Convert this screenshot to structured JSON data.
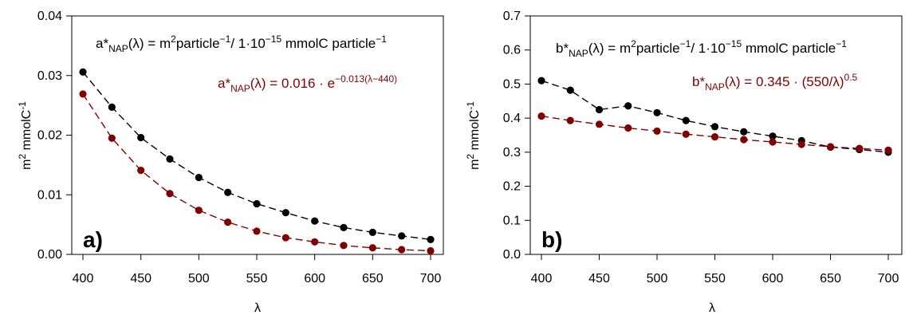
{
  "chart_data": [
    {
      "type": "line",
      "panel_label": "a)",
      "xlabel": "λ",
      "ylabel_main": "m",
      "ylabel_sup1": "2",
      "ylabel_mid": " mmolC",
      "ylabel_sup2": "-1",
      "xlim": [
        400,
        700
      ],
      "ylim": [
        0,
        0.04
      ],
      "xticks": [
        400,
        450,
        500,
        550,
        600,
        650,
        700
      ],
      "yticks": [
        0.0,
        0.01,
        0.02,
        0.03,
        0.04
      ],
      "ytick_labels": [
        "0.00",
        "0.01",
        "0.02",
        "0.03",
        "0.04"
      ],
      "formula_black": {
        "pre": "a*",
        "sub": "NAP",
        "mid": "(λ) = m",
        "sup1": "2",
        "mid2": "particle",
        "sup2": "−1",
        "mid3": "/ 1·10",
        "sup3": "−15",
        "post": " mmolC particle",
        "sup4": "−1"
      },
      "formula_red": {
        "pre": "a*",
        "sub": "NAP",
        "mid": "(λ) = 0.016 · e",
        "sup": "−0.013(λ−440)",
        "post": ""
      },
      "x": [
        400,
        425,
        450,
        475,
        500,
        525,
        550,
        575,
        600,
        625,
        650,
        675,
        700
      ],
      "series": [
        {
          "color": "#000000",
          "values": [
            0.0306,
            0.0247,
            0.0196,
            0.016,
            0.0129,
            0.0104,
            0.0085,
            0.007,
            0.0056,
            0.0045,
            0.0037,
            0.0031,
            0.0025
          ]
        },
        {
          "color": "#800000",
          "values": [
            0.0269,
            0.0195,
            0.0141,
            0.0102,
            0.0074,
            0.0054,
            0.0039,
            0.0028,
            0.0021,
            0.0015,
            0.0011,
            0.0008,
            0.0006
          ]
        }
      ]
    },
    {
      "type": "line",
      "panel_label": "b)",
      "xlabel": "λ",
      "ylabel_main": "m",
      "ylabel_sup1": "2",
      "ylabel_mid": " mmolC",
      "ylabel_sup2": "-1",
      "xlim": [
        400,
        700
      ],
      "ylim": [
        0,
        0.7
      ],
      "xticks": [
        400,
        450,
        500,
        550,
        600,
        650,
        700
      ],
      "yticks": [
        0.0,
        0.1,
        0.2,
        0.3,
        0.4,
        0.5,
        0.6,
        0.7
      ],
      "ytick_labels": [
        "0.0",
        "0.1",
        "0.2",
        "0.3",
        "0.4",
        "0.5",
        "0.6",
        "0.7"
      ],
      "formula_black": {
        "pre": "b*",
        "sub": "NAP",
        "mid": "(λ) = m",
        "sup1": "2",
        "mid2": "particle",
        "sup2": "−1",
        "mid3": "/ 1·10",
        "sup3": "−15",
        "post": " mmolC particle",
        "sup4": "−1"
      },
      "formula_red": {
        "pre": "b*",
        "sub": "NAP",
        "mid": "(λ) = 0.345 · (550/λ)",
        "sup": "0.5",
        "post": ""
      },
      "x": [
        400,
        425,
        450,
        475,
        500,
        525,
        550,
        575,
        600,
        625,
        650,
        675,
        700
      ],
      "series": [
        {
          "color": "#000000",
          "values": [
            0.51,
            0.482,
            0.425,
            0.436,
            0.416,
            0.393,
            0.375,
            0.36,
            0.347,
            0.334,
            0.315,
            0.308,
            0.3
          ]
        },
        {
          "color": "#800000",
          "values": [
            0.406,
            0.393,
            0.382,
            0.371,
            0.362,
            0.353,
            0.345,
            0.337,
            0.33,
            0.323,
            0.316,
            0.311,
            0.306
          ]
        }
      ]
    }
  ]
}
